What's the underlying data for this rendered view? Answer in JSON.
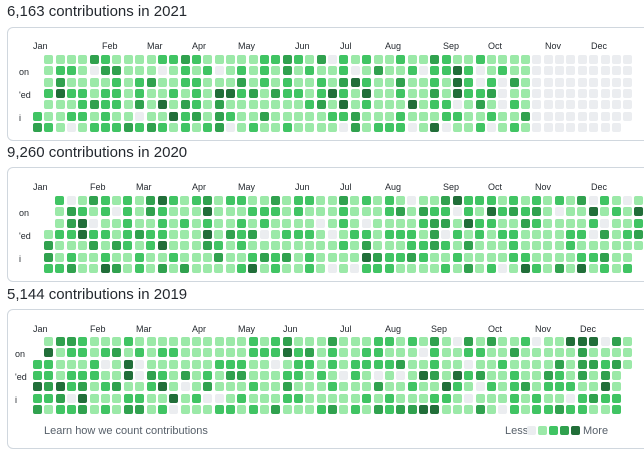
{
  "colors": {
    "levels": [
      "#ebedf0",
      "#9be9a8",
      "#40c463",
      "#30a14e",
      "#216e39"
    ],
    "border": "#d0d7de"
  },
  "years": [
    {
      "title": "6,163 contributions in 2021",
      "months": [
        "Jan",
        "Feb",
        "Mar",
        "Apr",
        "May",
        "Jun",
        "Jul",
        "Aug",
        "Sep",
        "Oct",
        "Nov",
        "Dec"
      ],
      "day_labels": [
        "on",
        "'ed",
        "i"
      ],
      "start_weekday": 5,
      "days": 365,
      "level_seed": 11,
      "filled_until_week": 44
    },
    {
      "title": "9,260 contributions in 2020",
      "months": [
        "Jan",
        "Feb",
        "Mar",
        "Apr",
        "May",
        "Jun",
        "Jul",
        "Aug",
        "Sep",
        "Oct",
        "Nov",
        "Dec"
      ],
      "day_labels": [
        "on",
        "'ed",
        "i"
      ],
      "start_weekday": 3,
      "days": 366,
      "level_seed": 23,
      "filled_until_week": 53
    },
    {
      "title": "5,144 contributions in 2019",
      "months": [
        "Jan",
        "Feb",
        "Mar",
        "Apr",
        "May",
        "Jun",
        "Jul",
        "Aug",
        "Sep",
        "Oct",
        "Nov",
        "Dec"
      ],
      "day_labels": [
        "on",
        "'ed",
        "i"
      ],
      "start_weekday": 2,
      "days": 365,
      "level_seed": 37,
      "filled_until_week": 53
    }
  ],
  "footer": {
    "learn_link": "Learn how we count contributions",
    "less": "Less",
    "more": "More"
  }
}
